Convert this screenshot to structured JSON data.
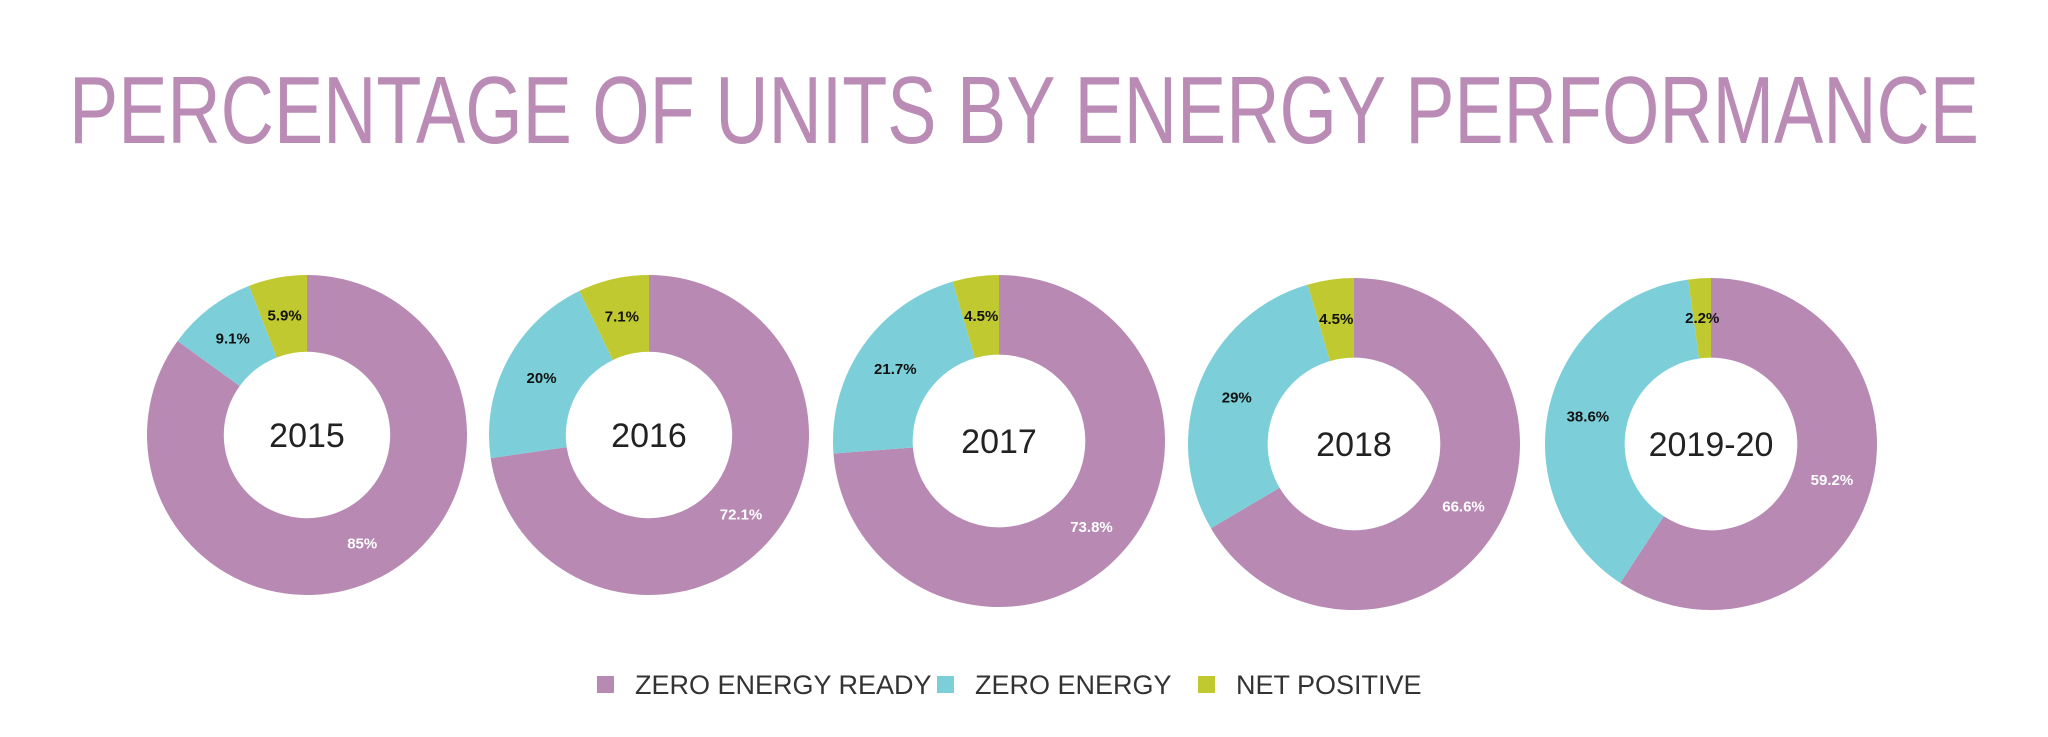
{
  "chart_data": {
    "type": "pie",
    "variant": "donut",
    "title": "PERCENTAGE OF UNITS BY ENERGY PERFORMANCE",
    "legend_placement": "bottom",
    "series_names": [
      "ZERO ENERGY READY",
      "ZERO ENERGY",
      "NET POSITIVE"
    ],
    "colors": [
      "#b789b3",
      "#7ccfd9",
      "#c0c930"
    ],
    "title_color": "#b98bb5",
    "charts": [
      {
        "label": "2015",
        "values": [
          85,
          9.1,
          5.9
        ],
        "value_labels": [
          "85%",
          "9.1%",
          "5.9%"
        ]
      },
      {
        "label": "2016",
        "values": [
          72.1,
          20,
          7.1
        ],
        "value_labels": [
          "72.1%",
          "20%",
          "7.1%"
        ]
      },
      {
        "label": "2017",
        "values": [
          73.8,
          21.7,
          4.5
        ],
        "value_labels": [
          "73.8%",
          "21.7%",
          "4.5%"
        ]
      },
      {
        "label": "2018",
        "values": [
          66.6,
          29,
          4.5
        ],
        "value_labels": [
          "66.6%",
          "29%",
          "4.5%"
        ]
      },
      {
        "label": "2019-20",
        "values": [
          59.2,
          38.6,
          2.2
        ],
        "value_labels": [
          "59.2%",
          "38.6%",
          "2.2%"
        ]
      }
    ]
  }
}
